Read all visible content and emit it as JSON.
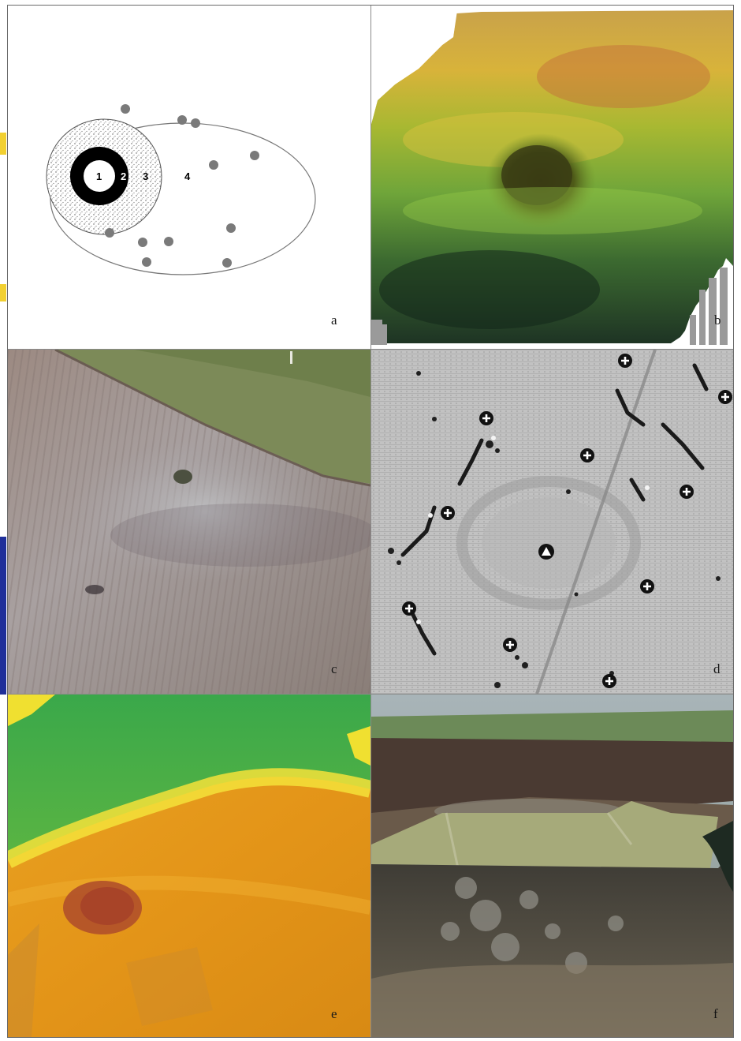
{
  "figure": {
    "panels": [
      {
        "id": "a",
        "label": "a",
        "kind": "schematic-diagram",
        "zone_labels": [
          "1",
          "2",
          "3",
          "4"
        ]
      },
      {
        "id": "b",
        "label": "b",
        "kind": "3d-terrain-model"
      },
      {
        "id": "c",
        "label": "c",
        "kind": "aerial-photo"
      },
      {
        "id": "d",
        "label": "d",
        "kind": "magnetometry-map"
      },
      {
        "id": "e",
        "label": "e",
        "kind": "lidar-elevation"
      },
      {
        "id": "f",
        "label": "f",
        "kind": "oblique-aerial-photo"
      }
    ],
    "colors": {
      "border": "#6a6a6a",
      "zone_fill_dark": "#000000",
      "dot": "#7a7a7a",
      "terrain_green": "#5f9a2f",
      "terrain_yellow": "#d9b52a",
      "lidar_orange": "#e08a12",
      "lidar_green": "#2aa85a"
    },
    "icons": [
      "cross-marker-icon",
      "triangle-marker-icon"
    ]
  }
}
